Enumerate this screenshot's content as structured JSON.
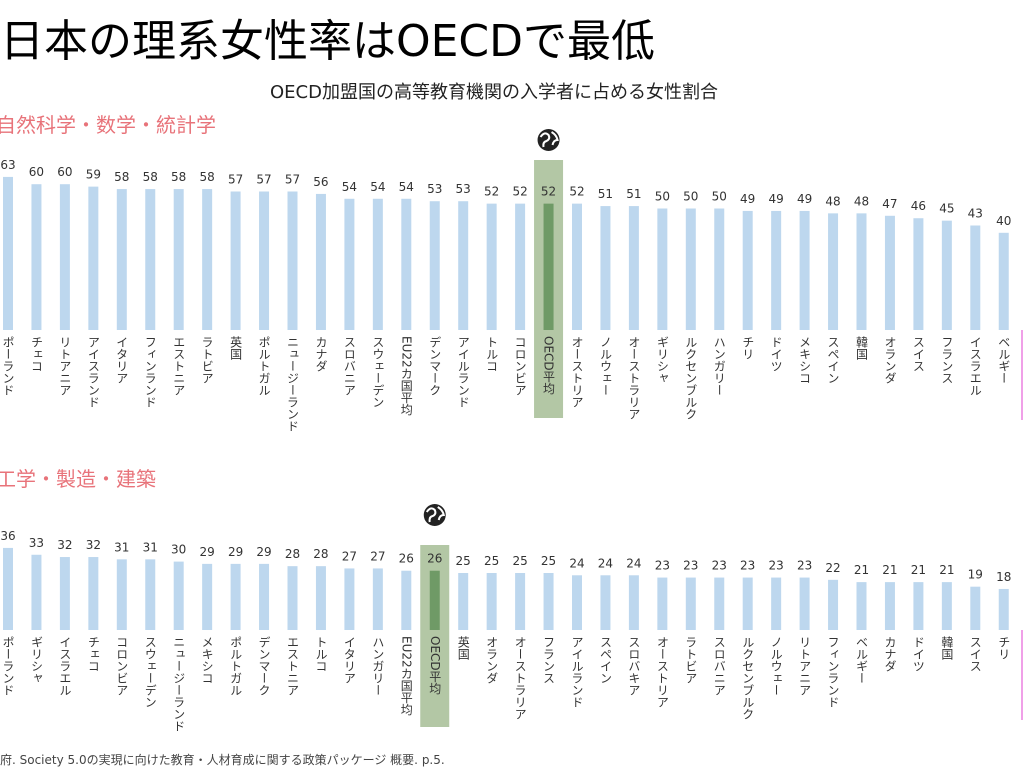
{
  "title": "日本の理系女性率はOECDで最低",
  "subtitle": "OECD加盟国の高等教育機関の入学者に占める女性割合",
  "footer": "府. Society 5.0の実現に向けた教育・人材育成に関する政策パッケージ 概要. p.5.",
  "chart_data": [
    {
      "type": "bar",
      "title": "自然科学・数学・統計学",
      "color": "#bdd7ee",
      "band_color": "#b3c7a5",
      "categories": [
        "ポーランド",
        "チェコ",
        "リトアニア",
        "アイスランド",
        "イタリア",
        "フィンランド",
        "エストニア",
        "ラトビア",
        "英国",
        "ポルトガル",
        "ニュージーランド",
        "カナダ",
        "スロバニア",
        "スウェーデン",
        "EU22カ国平均",
        "デンマーク",
        "アイルランド",
        "トルコ",
        "コロンビア",
        "OECD平均",
        "オーストリア",
        "ノルウェー",
        "オーストラリア",
        "ギリシャ",
        "ルクセンブルク",
        "ハンガリー",
        "チリ",
        "ドイツ",
        "メキシコ",
        "スペイン",
        "韓国",
        "オランダ",
        "スイス",
        "フランス",
        "イスラエル",
        "ベルギー"
      ],
      "values": [
        63,
        60,
        60,
        59,
        58,
        58,
        58,
        58,
        57,
        57,
        57,
        56,
        54,
        54,
        54,
        53,
        53,
        52,
        52,
        52,
        52,
        51,
        51,
        50,
        50,
        50,
        49,
        49,
        49,
        48,
        48,
        47,
        46,
        45,
        43,
        40
      ],
      "colors": [
        "#bdd7ee",
        "#bdd7ee",
        "#bdd7ee",
        "#bdd7ee",
        "#bdd7ee",
        "#bdd7ee",
        "#bdd7ee",
        "#bdd7ee",
        "#bdd7ee",
        "#bdd7ee",
        "#bdd7ee",
        "#bdd7ee",
        "#bdd7ee",
        "#bdd7ee",
        "#bdd7ee",
        "#bdd7ee",
        "#bdd7ee",
        "#bdd7ee",
        "#bdd7ee",
        "#6f9a66",
        "#bdd7ee",
        "#bdd7ee",
        "#bdd7ee",
        "#bdd7ee",
        "#bdd7ee",
        "#bdd7ee",
        "#bdd7ee",
        "#bdd7ee",
        "#bdd7ee",
        "#bdd7ee",
        "#bdd7ee",
        "#bdd7ee",
        "#bdd7ee",
        "#bdd7ee",
        "#bdd7ee",
        "#bdd7ee"
      ]
    },
    {
      "type": "bar",
      "title": "工学・製造・建築",
      "color": "#bdd7ee",
      "band_color": "#b3c7a5",
      "categories": [
        "ポーランド",
        "ギリシャ",
        "イスラエル",
        "チェコ",
        "コロンビア",
        "スウェーデン",
        "ニュージーランド",
        "メキシコ",
        "ポルトガル",
        "デンマーク",
        "エストニア",
        "トルコ",
        "イタリア",
        "ハンガリー",
        "EU22カ国平均",
        "OECD平均",
        "英国",
        "オランダ",
        "オーストラリア",
        "フランス",
        "アイルランド",
        "スペイン",
        "スロバキア",
        "オーストリア",
        "ラトビア",
        "スロバニア",
        "ルクセンブルク",
        "ノルウェー",
        "リトアニア",
        "フィンランド",
        "ベルギー",
        "カナダ",
        "ドイツ",
        "韓国",
        "スイス",
        "チリ"
      ],
      "values": [
        36,
        33,
        32,
        32,
        31,
        31,
        30,
        29,
        29,
        29,
        28,
        28,
        27,
        27,
        26,
        26,
        25,
        25,
        25,
        25,
        24,
        24,
        24,
        23,
        23,
        23,
        23,
        23,
        23,
        22,
        21,
        21,
        21,
        21,
        19,
        18
      ],
      "colors": [
        "#bdd7ee",
        "#bdd7ee",
        "#bdd7ee",
        "#bdd7ee",
        "#bdd7ee",
        "#bdd7ee",
        "#bdd7ee",
        "#bdd7ee",
        "#bdd7ee",
        "#bdd7ee",
        "#bdd7ee",
        "#bdd7ee",
        "#bdd7ee",
        "#bdd7ee",
        "#bdd7ee",
        "#6f9a66",
        "#bdd7ee",
        "#bdd7ee",
        "#bdd7ee",
        "#bdd7ee",
        "#bdd7ee",
        "#bdd7ee",
        "#bdd7ee",
        "#bdd7ee",
        "#bdd7ee",
        "#bdd7ee",
        "#bdd7ee",
        "#bdd7ee",
        "#bdd7ee",
        "#bdd7ee",
        "#bdd7ee",
        "#bdd7ee",
        "#bdd7ee",
        "#bdd7ee",
        "#bdd7ee",
        "#bdd7ee"
      ]
    }
  ]
}
